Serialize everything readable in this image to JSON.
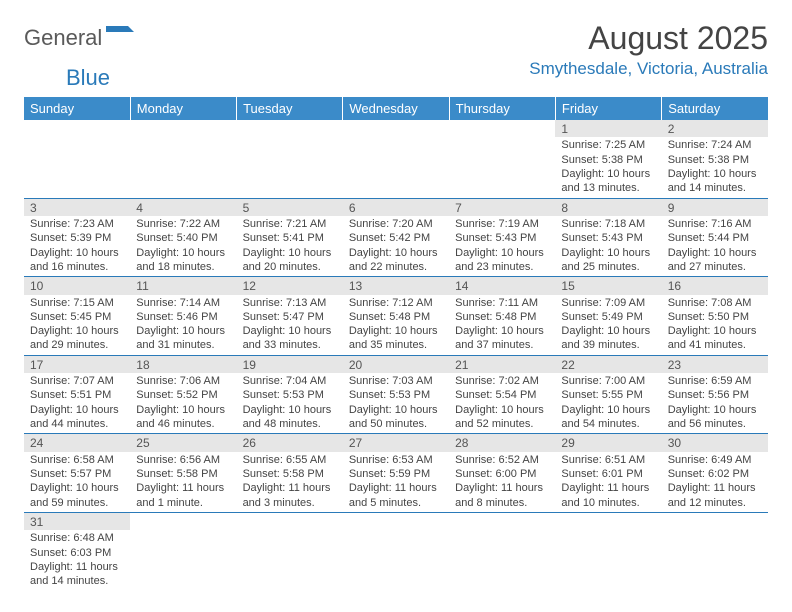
{
  "logo": {
    "text1": "General",
    "text2": "Blue",
    "shape_color": "#2a7ab9"
  },
  "title": "August 2025",
  "location": "Smythesdale, Victoria, Australia",
  "colors": {
    "header_bg": "#3b8bc9",
    "header_text": "#ffffff",
    "accent": "#2a7ab9",
    "daynum_bg": "#e6e6e6",
    "text": "#444444"
  },
  "day_headers": [
    "Sunday",
    "Monday",
    "Tuesday",
    "Wednesday",
    "Thursday",
    "Friday",
    "Saturday"
  ],
  "weeks": [
    [
      null,
      null,
      null,
      null,
      null,
      {
        "n": "1",
        "sr": "7:25 AM",
        "ss": "5:38 PM",
        "dl": "10 hours and 13 minutes."
      },
      {
        "n": "2",
        "sr": "7:24 AM",
        "ss": "5:38 PM",
        "dl": "10 hours and 14 minutes."
      }
    ],
    [
      {
        "n": "3",
        "sr": "7:23 AM",
        "ss": "5:39 PM",
        "dl": "10 hours and 16 minutes."
      },
      {
        "n": "4",
        "sr": "7:22 AM",
        "ss": "5:40 PM",
        "dl": "10 hours and 18 minutes."
      },
      {
        "n": "5",
        "sr": "7:21 AM",
        "ss": "5:41 PM",
        "dl": "10 hours and 20 minutes."
      },
      {
        "n": "6",
        "sr": "7:20 AM",
        "ss": "5:42 PM",
        "dl": "10 hours and 22 minutes."
      },
      {
        "n": "7",
        "sr": "7:19 AM",
        "ss": "5:43 PM",
        "dl": "10 hours and 23 minutes."
      },
      {
        "n": "8",
        "sr": "7:18 AM",
        "ss": "5:43 PM",
        "dl": "10 hours and 25 minutes."
      },
      {
        "n": "9",
        "sr": "7:16 AM",
        "ss": "5:44 PM",
        "dl": "10 hours and 27 minutes."
      }
    ],
    [
      {
        "n": "10",
        "sr": "7:15 AM",
        "ss": "5:45 PM",
        "dl": "10 hours and 29 minutes."
      },
      {
        "n": "11",
        "sr": "7:14 AM",
        "ss": "5:46 PM",
        "dl": "10 hours and 31 minutes."
      },
      {
        "n": "12",
        "sr": "7:13 AM",
        "ss": "5:47 PM",
        "dl": "10 hours and 33 minutes."
      },
      {
        "n": "13",
        "sr": "7:12 AM",
        "ss": "5:48 PM",
        "dl": "10 hours and 35 minutes."
      },
      {
        "n": "14",
        "sr": "7:11 AM",
        "ss": "5:48 PM",
        "dl": "10 hours and 37 minutes."
      },
      {
        "n": "15",
        "sr": "7:09 AM",
        "ss": "5:49 PM",
        "dl": "10 hours and 39 minutes."
      },
      {
        "n": "16",
        "sr": "7:08 AM",
        "ss": "5:50 PM",
        "dl": "10 hours and 41 minutes."
      }
    ],
    [
      {
        "n": "17",
        "sr": "7:07 AM",
        "ss": "5:51 PM",
        "dl": "10 hours and 44 minutes."
      },
      {
        "n": "18",
        "sr": "7:06 AM",
        "ss": "5:52 PM",
        "dl": "10 hours and 46 minutes."
      },
      {
        "n": "19",
        "sr": "7:04 AM",
        "ss": "5:53 PM",
        "dl": "10 hours and 48 minutes."
      },
      {
        "n": "20",
        "sr": "7:03 AM",
        "ss": "5:53 PM",
        "dl": "10 hours and 50 minutes."
      },
      {
        "n": "21",
        "sr": "7:02 AM",
        "ss": "5:54 PM",
        "dl": "10 hours and 52 minutes."
      },
      {
        "n": "22",
        "sr": "7:00 AM",
        "ss": "5:55 PM",
        "dl": "10 hours and 54 minutes."
      },
      {
        "n": "23",
        "sr": "6:59 AM",
        "ss": "5:56 PM",
        "dl": "10 hours and 56 minutes."
      }
    ],
    [
      {
        "n": "24",
        "sr": "6:58 AM",
        "ss": "5:57 PM",
        "dl": "10 hours and 59 minutes."
      },
      {
        "n": "25",
        "sr": "6:56 AM",
        "ss": "5:58 PM",
        "dl": "11 hours and 1 minute."
      },
      {
        "n": "26",
        "sr": "6:55 AM",
        "ss": "5:58 PM",
        "dl": "11 hours and 3 minutes."
      },
      {
        "n": "27",
        "sr": "6:53 AM",
        "ss": "5:59 PM",
        "dl": "11 hours and 5 minutes."
      },
      {
        "n": "28",
        "sr": "6:52 AM",
        "ss": "6:00 PM",
        "dl": "11 hours and 8 minutes."
      },
      {
        "n": "29",
        "sr": "6:51 AM",
        "ss": "6:01 PM",
        "dl": "11 hours and 10 minutes."
      },
      {
        "n": "30",
        "sr": "6:49 AM",
        "ss": "6:02 PM",
        "dl": "11 hours and 12 minutes."
      }
    ],
    [
      {
        "n": "31",
        "sr": "6:48 AM",
        "ss": "6:03 PM",
        "dl": "11 hours and 14 minutes."
      },
      null,
      null,
      null,
      null,
      null,
      null
    ]
  ],
  "labels": {
    "sunrise": "Sunrise: ",
    "sunset": "Sunset: ",
    "daylight": "Daylight: "
  }
}
